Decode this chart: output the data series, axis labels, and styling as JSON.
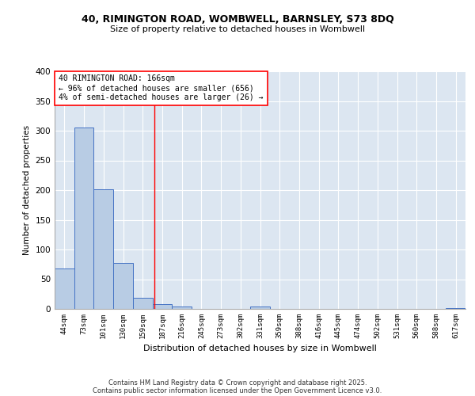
{
  "title_line1": "40, RIMINGTON ROAD, WOMBWELL, BARNSLEY, S73 8DQ",
  "title_line2": "Size of property relative to detached houses in Wombwell",
  "xlabel": "Distribution of detached houses by size in Wombwell",
  "ylabel": "Number of detached properties",
  "categories": [
    "44sqm",
    "73sqm",
    "101sqm",
    "130sqm",
    "159sqm",
    "187sqm",
    "216sqm",
    "245sqm",
    "273sqm",
    "302sqm",
    "331sqm",
    "359sqm",
    "388sqm",
    "416sqm",
    "445sqm",
    "474sqm",
    "502sqm",
    "531sqm",
    "560sqm",
    "588sqm",
    "617sqm"
  ],
  "values": [
    68,
    305,
    201,
    77,
    19,
    8,
    4,
    0,
    0,
    0,
    4,
    0,
    0,
    0,
    0,
    0,
    0,
    0,
    0,
    0,
    2
  ],
  "bar_color": "#b8cce4",
  "bar_edge_color": "#4472c4",
  "background_color": "#dce6f1",
  "grid_color": "#ffffff",
  "vline_x": 4.58,
  "vline_color": "red",
  "annotation_text": "40 RIMINGTON ROAD: 166sqm\n← 96% of detached houses are smaller (656)\n4% of semi-detached houses are larger (26) →",
  "footer_line1": "Contains HM Land Registry data © Crown copyright and database right 2025.",
  "footer_line2": "Contains public sector information licensed under the Open Government Licence v3.0.",
  "ylim": [
    0,
    400
  ],
  "yticks": [
    0,
    50,
    100,
    150,
    200,
    250,
    300,
    350,
    400
  ]
}
